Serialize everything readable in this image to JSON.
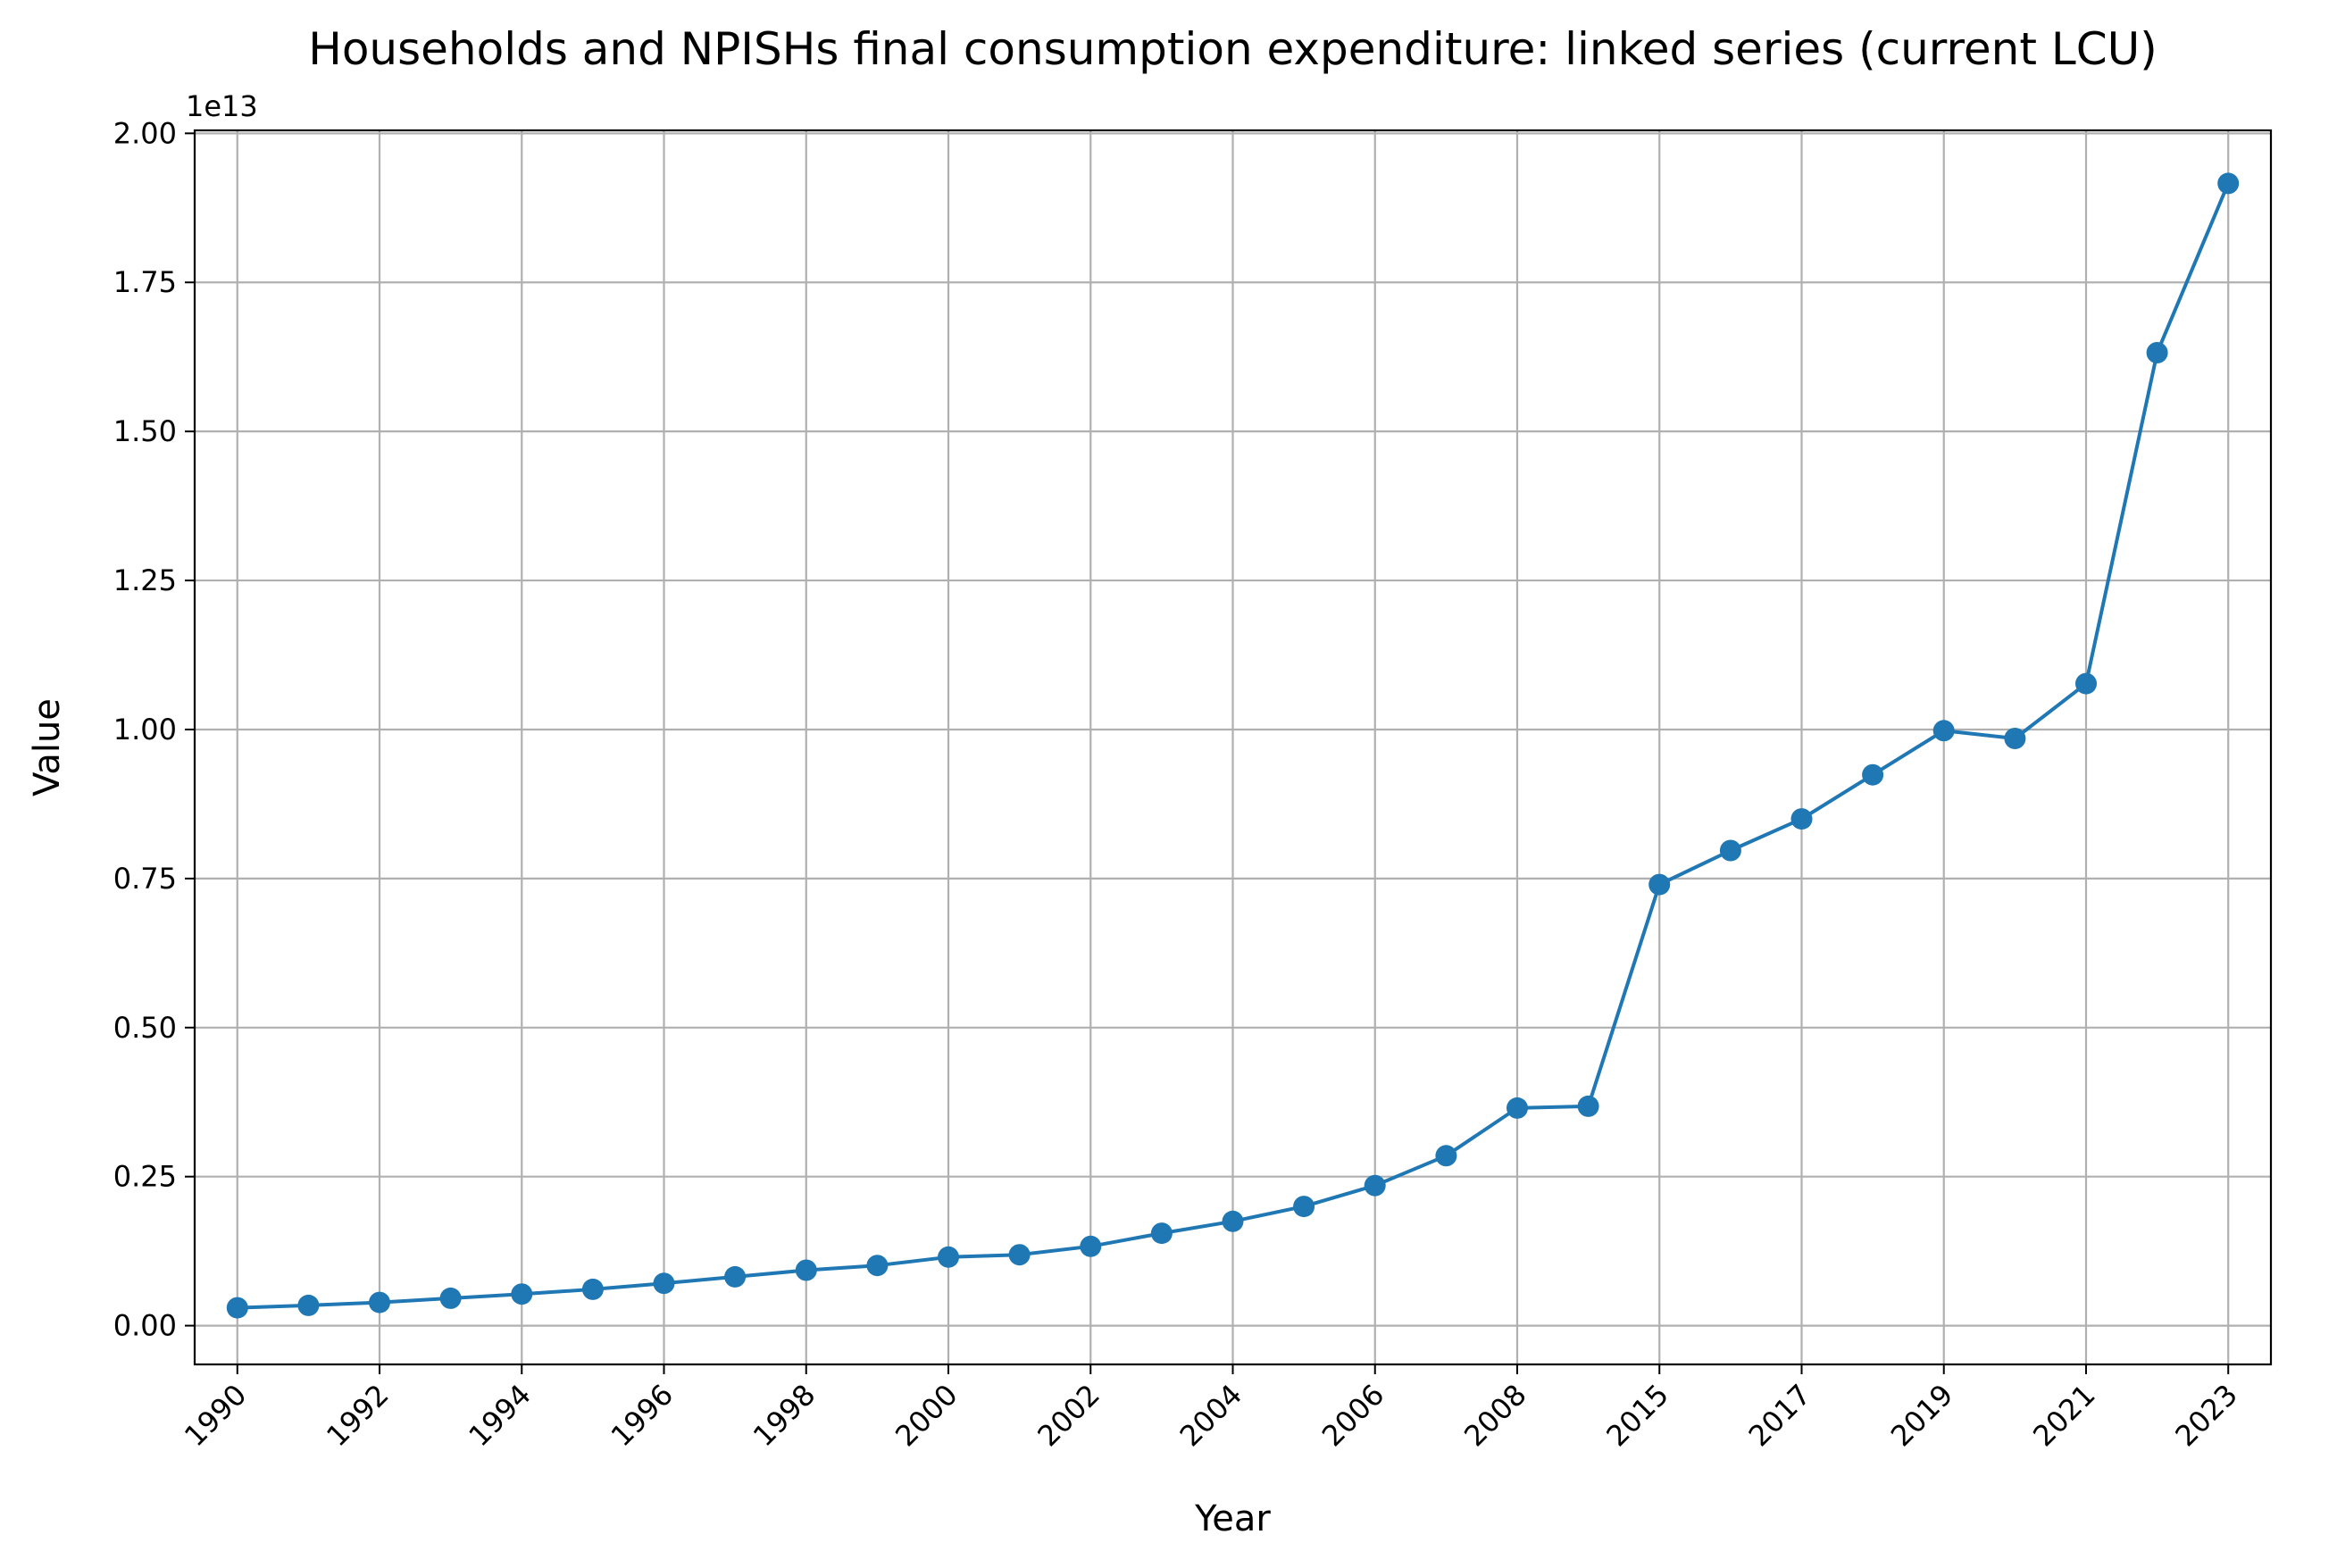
{
  "chart_data": {
    "type": "line",
    "title": "Households and NPISHs final consumption expenditure: linked series (current LCU)",
    "xlabel": "Year",
    "ylabel": "Value",
    "y_offset_label": "1e13",
    "ylim": [
      -650000000000.0,
      20050000000000.0
    ],
    "y_ticks": [
      0,
      2500000000000.0,
      5000000000000.0,
      7500000000000.0,
      10000000000000.0,
      12500000000000.0,
      15000000000000.0,
      17500000000000.0,
      20000000000000.0
    ],
    "y_tick_labels": [
      "0.00",
      "0.25",
      "0.50",
      "0.75",
      "1.00",
      "1.25",
      "1.50",
      "1.75",
      "2.00"
    ],
    "grid": true,
    "x_tick_labels": [
      "1990",
      "1992",
      "1994",
      "1996",
      "1998",
      "2000",
      "2002",
      "2004",
      "2006",
      "2008",
      "2015",
      "2017",
      "2019",
      "2021",
      "2023"
    ],
    "x": [
      "1990",
      "1991",
      "1992",
      "1993",
      "1994",
      "1995",
      "1996",
      "1997",
      "1998",
      "1999",
      "2000",
      "2001",
      "2002",
      "2003",
      "2004",
      "2005",
      "2006",
      "2007",
      "2008",
      "2009",
      "2015",
      "2016",
      "2017",
      "2018",
      "2019",
      "2020",
      "2021",
      "2022",
      "2023"
    ],
    "series": [
      {
        "color": "#1f77b4",
        "values": [
          300000000000.0,
          340000000000.0,
          390000000000.0,
          460000000000.0,
          530000000000.0,
          610000000000.0,
          710000000000.0,
          820000000000.0,
          930000000000.0,
          1010000000000.0,
          1150000000000.0,
          1190000000000.0,
          1330000000000.0,
          1550000000000.0,
          1750000000000.0,
          2000000000000.0,
          2350000000000.0,
          2850000000000.0,
          3650000000000.0,
          3680000000000.0,
          7400000000000.0,
          7970000000000.0,
          8500000000000.0,
          9240000000000.0,
          9980000000000.0,
          9850000000000.0,
          10770000000000.0,
          16320000000000.0,
          19160000000000.0
        ]
      }
    ]
  }
}
